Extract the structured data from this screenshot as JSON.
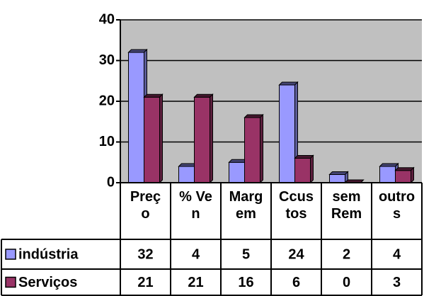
{
  "chart_data": {
    "type": "bar",
    "categories": [
      "Preço",
      "% Ven",
      "Margem",
      "Ccustos",
      "sem Rem",
      "outros"
    ],
    "series": [
      {
        "name": "indústria",
        "color": "#9999ff",
        "values": [
          32,
          4,
          5,
          24,
          2,
          4
        ]
      },
      {
        "name": "Serviços",
        "color": "#993366",
        "values": [
          21,
          21,
          16,
          6,
          0,
          3
        ]
      }
    ],
    "ylim": [
      0,
      40
    ],
    "yticks": [
      0,
      10,
      20,
      30,
      40
    ],
    "grid": true
  }
}
